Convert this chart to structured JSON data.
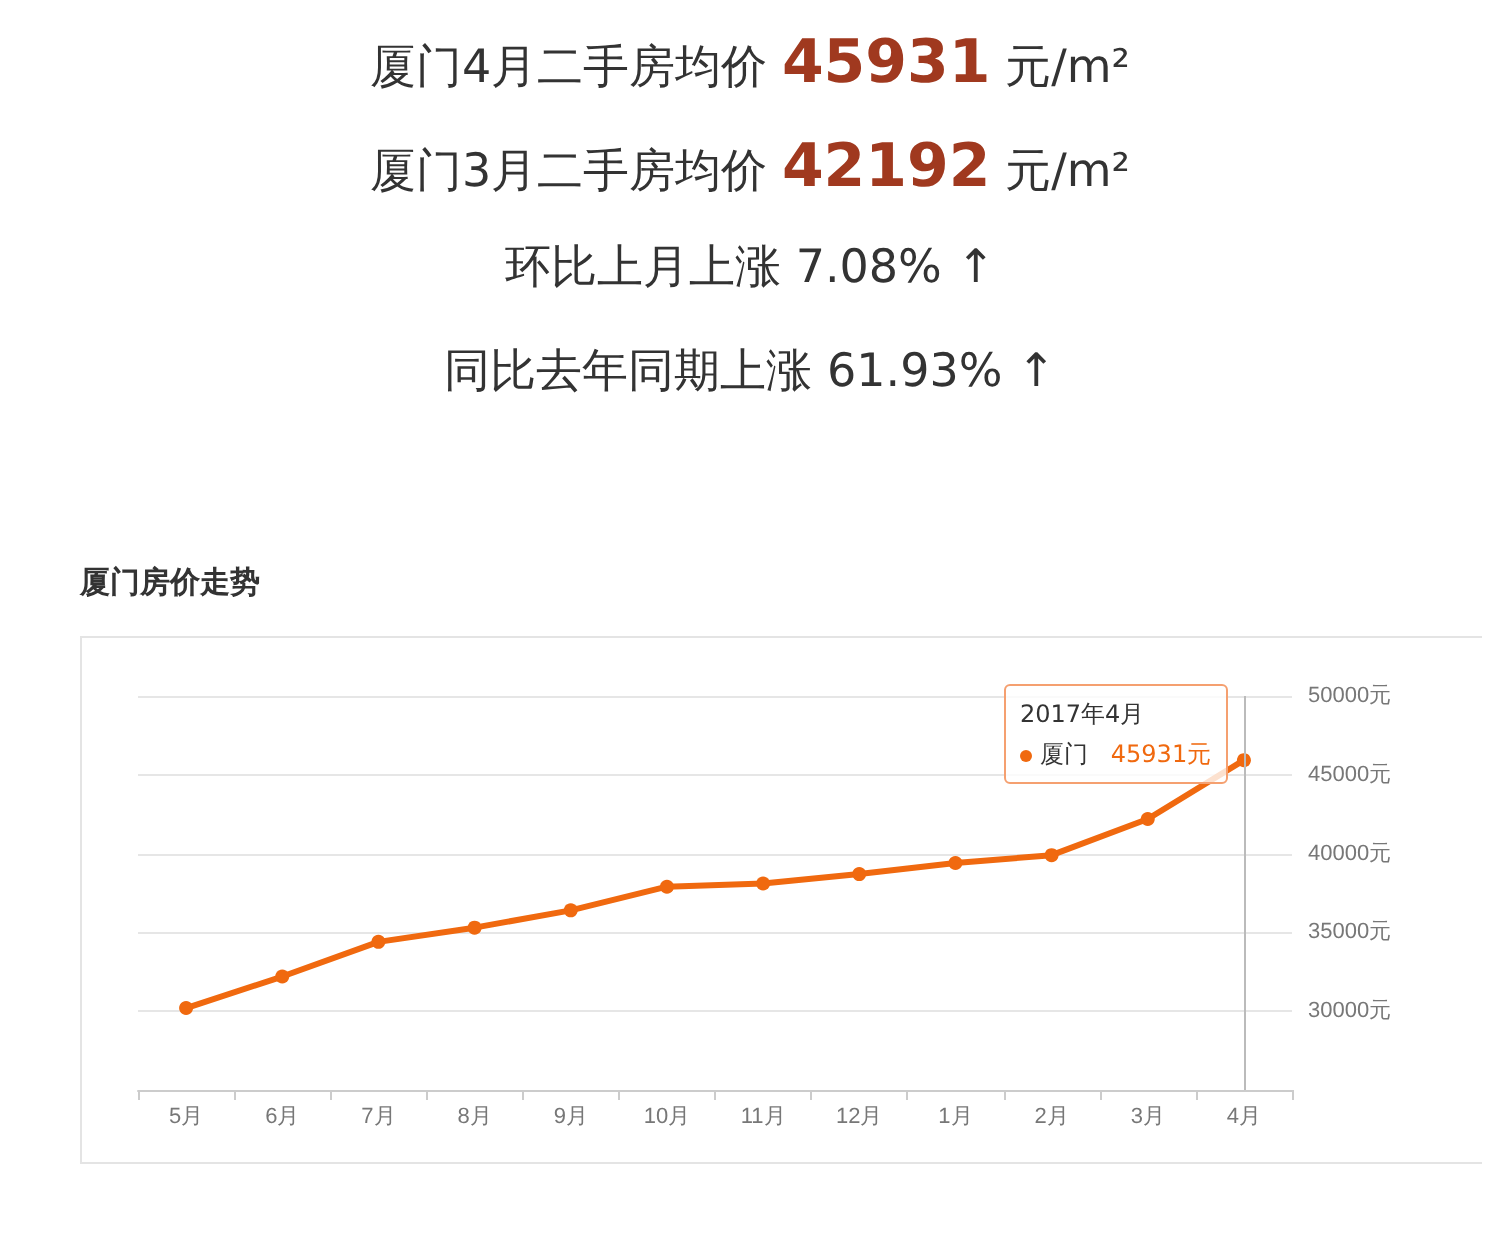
{
  "chart_data": {
    "type": "line",
    "title": "厦门房价走势",
    "annotations": [
      "厦门4月二手房均价 45931 元/m²",
      "厦门3月二手房均价 42192 元/m²",
      "环比上月上涨 7.08% ↑",
      "同比去年同期上涨 61.93% ↑",
      "2017年4月"
    ],
    "categories": [
      "5月",
      "6月",
      "7月",
      "8月",
      "9月",
      "10月",
      "11月",
      "12月",
      "1月",
      "2月",
      "3月",
      "4月"
    ],
    "series": [
      {
        "name": "厦门",
        "color": "#f0690f",
        "values": [
          30200,
          32200,
          34400,
          35300,
          36400,
          37900,
          38100,
          38700,
          39400,
          39900,
          42192,
          45931
        ],
        "value_labels": [
          null,
          null,
          null,
          null,
          null,
          null,
          null,
          null,
          null,
          null,
          null,
          "45931元"
        ]
      }
    ],
    "ylim": [
      25000,
      50000
    ],
    "yticks": [
      {
        "value": 30000,
        "label": "30000元"
      },
      {
        "value": 35000,
        "label": "35000元"
      },
      {
        "value": 40000,
        "label": "40000元"
      },
      {
        "value": 45000,
        "label": "45000元"
      },
      {
        "value": 50000,
        "label": "50000元"
      }
    ],
    "ref_lines": [
      {
        "axis": "x",
        "value": "4月",
        "color": "#bbbbbb"
      }
    ],
    "grid": "y",
    "marker": "circle",
    "line_style": "solid"
  }
}
